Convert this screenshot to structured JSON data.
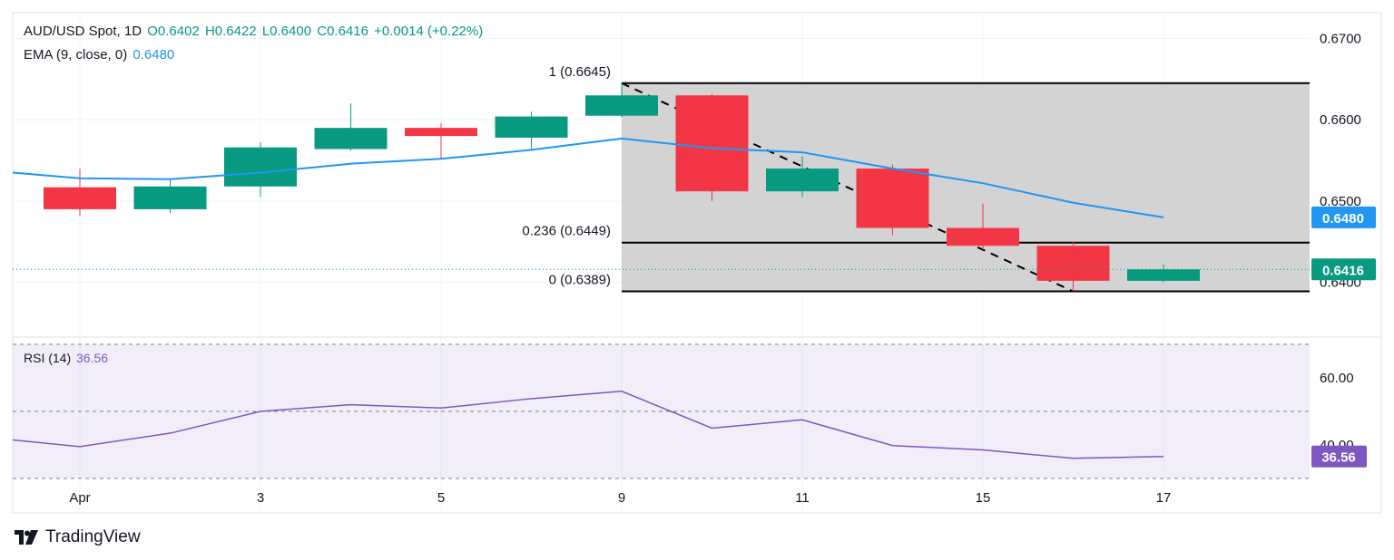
{
  "header": {
    "symbol": "AUD/USD Spot, 1D",
    "open": "O0.6402",
    "high": "H0.6422",
    "low": "L0.6400",
    "close": "C0.6416",
    "change": "+0.0014 (+0.22%)",
    "ema_label": "EMA (9, close, 0)",
    "ema_value": "0.6480",
    "rsi_label": "RSI (14)",
    "rsi_value": "36.56"
  },
  "brand": {
    "name": "TradingView"
  },
  "colors": {
    "up": "#089981",
    "down": "#f23645",
    "ema": "#2196f3",
    "rsi": "#7e57c2",
    "fib_fill": "#d1d1d1"
  },
  "chart_data": [
    {
      "type": "candlestick",
      "x_tick_labels": [
        "Apr",
        "3",
        "5",
        "9",
        "11",
        "15",
        "17"
      ],
      "y_tick_labels": [
        "0.6700",
        "0.6600",
        "0.6500",
        "0.6400"
      ],
      "ylim": [
        0.6335,
        0.6725
      ],
      "candles": [
        {
          "o": 0.6517,
          "h": 0.654,
          "l": 0.6482,
          "c": 0.649
        },
        {
          "o": 0.649,
          "h": 0.6528,
          "l": 0.6485,
          "c": 0.6518
        },
        {
          "o": 0.6518,
          "h": 0.6572,
          "l": 0.6505,
          "c": 0.6566
        },
        {
          "o": 0.6564,
          "h": 0.662,
          "l": 0.6562,
          "c": 0.659
        },
        {
          "o": 0.659,
          "h": 0.6596,
          "l": 0.6552,
          "c": 0.658
        },
        {
          "o": 0.6578,
          "h": 0.661,
          "l": 0.6562,
          "c": 0.6604
        },
        {
          "o": 0.6605,
          "h": 0.6645,
          "l": 0.6603,
          "c": 0.663
        },
        {
          "o": 0.663,
          "h": 0.6632,
          "l": 0.65,
          "c": 0.6512
        },
        {
          "o": 0.6512,
          "h": 0.6555,
          "l": 0.6505,
          "c": 0.654
        },
        {
          "o": 0.654,
          "h": 0.6545,
          "l": 0.6458,
          "c": 0.6467
        },
        {
          "o": 0.6467,
          "h": 0.6497,
          "l": 0.644,
          "c": 0.6445
        },
        {
          "o": 0.6445,
          "h": 0.645,
          "l": 0.6389,
          "c": 0.6402
        },
        {
          "o": 0.6402,
          "h": 0.6422,
          "l": 0.64,
          "c": 0.6416
        }
      ],
      "ema9": [
        0.6535,
        0.6528,
        0.6527,
        0.6535,
        0.6546,
        0.6552,
        0.6563,
        0.6577,
        0.6565,
        0.656,
        0.654,
        0.6522,
        0.6498,
        0.648
      ],
      "fibonacci": [
        {
          "label": "1 (0.6645)",
          "value": 0.6645
        },
        {
          "label": "0.236 (0.6449)",
          "value": 0.6449
        },
        {
          "label": "0 (0.6389)",
          "value": 0.6389
        }
      ],
      "last_price_label": "0.6416",
      "ema_price_label": "0.6480"
    },
    {
      "type": "line",
      "series": [
        {
          "values": [
            41.5,
            39.5,
            43.5,
            50.0,
            52.0,
            51.0,
            53.8,
            56.0,
            45.0,
            47.5,
            39.8,
            38.5,
            36.0,
            36.56
          ]
        }
      ],
      "y_tick_labels": [
        "60.00",
        "40.00"
      ],
      "levels": [
        70,
        50,
        30
      ],
      "ylim": [
        30,
        70
      ],
      "current_label": "36.56"
    }
  ]
}
